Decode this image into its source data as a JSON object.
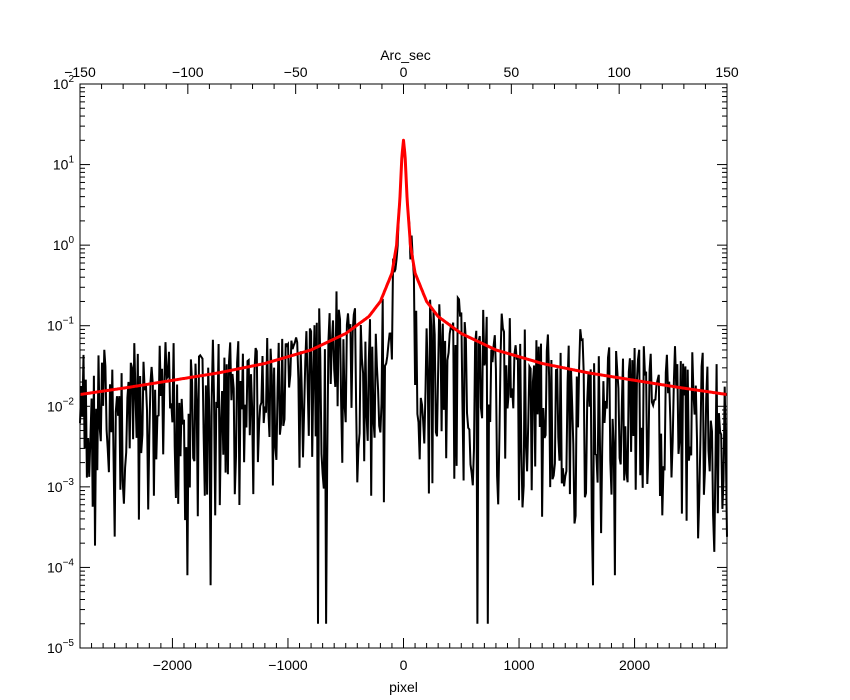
{
  "chart_data": {
    "type": "line",
    "xlabel": "pixel",
    "x2label": "Arc_sec",
    "xlim": [
      -2800,
      2800
    ],
    "x2lim": [
      -150,
      150
    ],
    "ylim": [
      1e-05,
      100
    ],
    "yscale": "log",
    "grid": false,
    "x_ticks": [
      -2000,
      -1000,
      0,
      1000,
      2000
    ],
    "x_tick_labels": [
      "−2000",
      "−1000",
      "0",
      "1000",
      "2000"
    ],
    "x2_ticks": [
      -150,
      -100,
      -50,
      0,
      50,
      100,
      150
    ],
    "x2_tick_labels": [
      "−150",
      "−100",
      "−50",
      "0",
      "50",
      "100",
      "150"
    ],
    "y_ticks": [
      1e-05,
      0.0001,
      0.001,
      0.01,
      0.1,
      1,
      10,
      100
    ],
    "y_tick_base": "10",
    "y_tick_exponents": [
      "−5",
      "−4",
      "−3",
      "−2",
      "−1",
      "0",
      "1",
      "2"
    ],
    "series": [
      {
        "color": "#000000",
        "style": "noisy data",
        "peak": 20,
        "gap_halfwidth_pixels": 100,
        "deep_dips": [
          {
            "x": -1870,
            "y": 8e-05
          },
          {
            "x": -1670,
            "y": 6e-05
          },
          {
            "x": -740,
            "y": 2e-05
          },
          {
            "x": -670,
            "y": 2e-05
          },
          {
            "x": 640,
            "y": 2e-05
          },
          {
            "x": 730,
            "y": 2e-05
          },
          {
            "x": 1640,
            "y": 6e-05
          },
          {
            "x": 1830,
            "y": 8e-05
          }
        ]
      },
      {
        "color": "#ff0000",
        "style": "fitted model",
        "x": [
          -2800,
          -2400,
          -2000,
          -1600,
          -1200,
          -800,
          -500,
          -300,
          -200,
          -100,
          -60,
          -30,
          -15,
          0,
          15,
          30,
          60,
          100,
          200,
          300,
          500,
          800,
          1200,
          1600,
          2000,
          2400,
          2800
        ],
        "y": [
          0.014,
          0.017,
          0.021,
          0.026,
          0.034,
          0.05,
          0.08,
          0.13,
          0.2,
          0.45,
          1.0,
          4.0,
          12.0,
          20.0,
          12.0,
          4.0,
          1.0,
          0.45,
          0.2,
          0.13,
          0.08,
          0.05,
          0.034,
          0.026,
          0.021,
          0.017,
          0.014
        ]
      }
    ]
  }
}
